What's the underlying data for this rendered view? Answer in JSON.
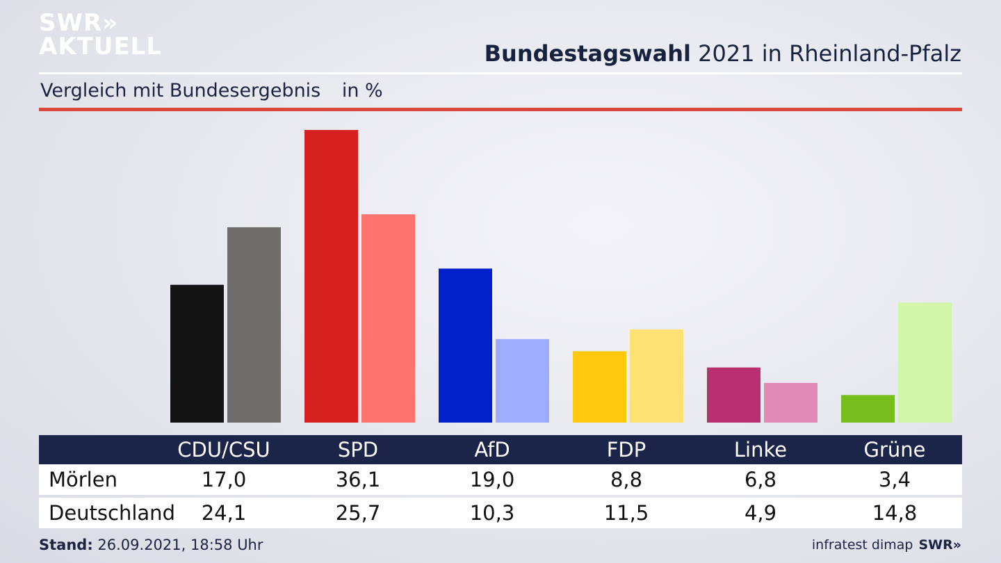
{
  "logo": {
    "line1": "SWR»",
    "line2": "AKTUELL"
  },
  "header": {
    "title_bold": "Bundestagswahl",
    "title_rest": "2021 in Rheinland-Pfalz",
    "subtitle": "Vergleich mit Bundesergebnis",
    "unit": "in %"
  },
  "colors": {
    "accent_rule": "#d9483a",
    "table_header": "#1b2549"
  },
  "chart_data": {
    "type": "bar",
    "categories": [
      "CDU/CSU",
      "SPD",
      "AfD",
      "FDP",
      "Linke",
      "Grüne"
    ],
    "series": [
      {
        "name": "Mörlen",
        "values": [
          17.0,
          36.1,
          19.0,
          8.8,
          6.8,
          3.4
        ],
        "colors": [
          "#141414",
          "#d62020",
          "#0120c9",
          "#fcc90f",
          "#b83070",
          "#78bd1e"
        ]
      },
      {
        "name": "Deutschland",
        "values": [
          24.1,
          25.7,
          10.3,
          11.5,
          4.9,
          14.8
        ],
        "colors": [
          "#6f6e6c",
          "#ff746e",
          "#9eacff",
          "#fde273",
          "#e08cb6",
          "#d3f5a8"
        ]
      }
    ],
    "ylim": [
      0,
      36.1
    ],
    "grid": false,
    "legend": "table below chart"
  },
  "table": {
    "headers": [
      "CDU/CSU",
      "SPD",
      "AfD",
      "FDP",
      "Linke",
      "Grüne"
    ],
    "rows": [
      {
        "label": "Mörlen",
        "values": [
          "17,0",
          "36,1",
          "19,0",
          "8,8",
          "6,8",
          "3,4"
        ]
      },
      {
        "label": "Deutschland",
        "values": [
          "24,1",
          "25,7",
          "10,3",
          "11,5",
          "4,9",
          "14,8"
        ]
      }
    ]
  },
  "footer": {
    "stand_label": "Stand:",
    "stand_value": "26.09.2021, 18:58 Uhr",
    "source": "infratest dimap",
    "brand": "SWR»"
  }
}
